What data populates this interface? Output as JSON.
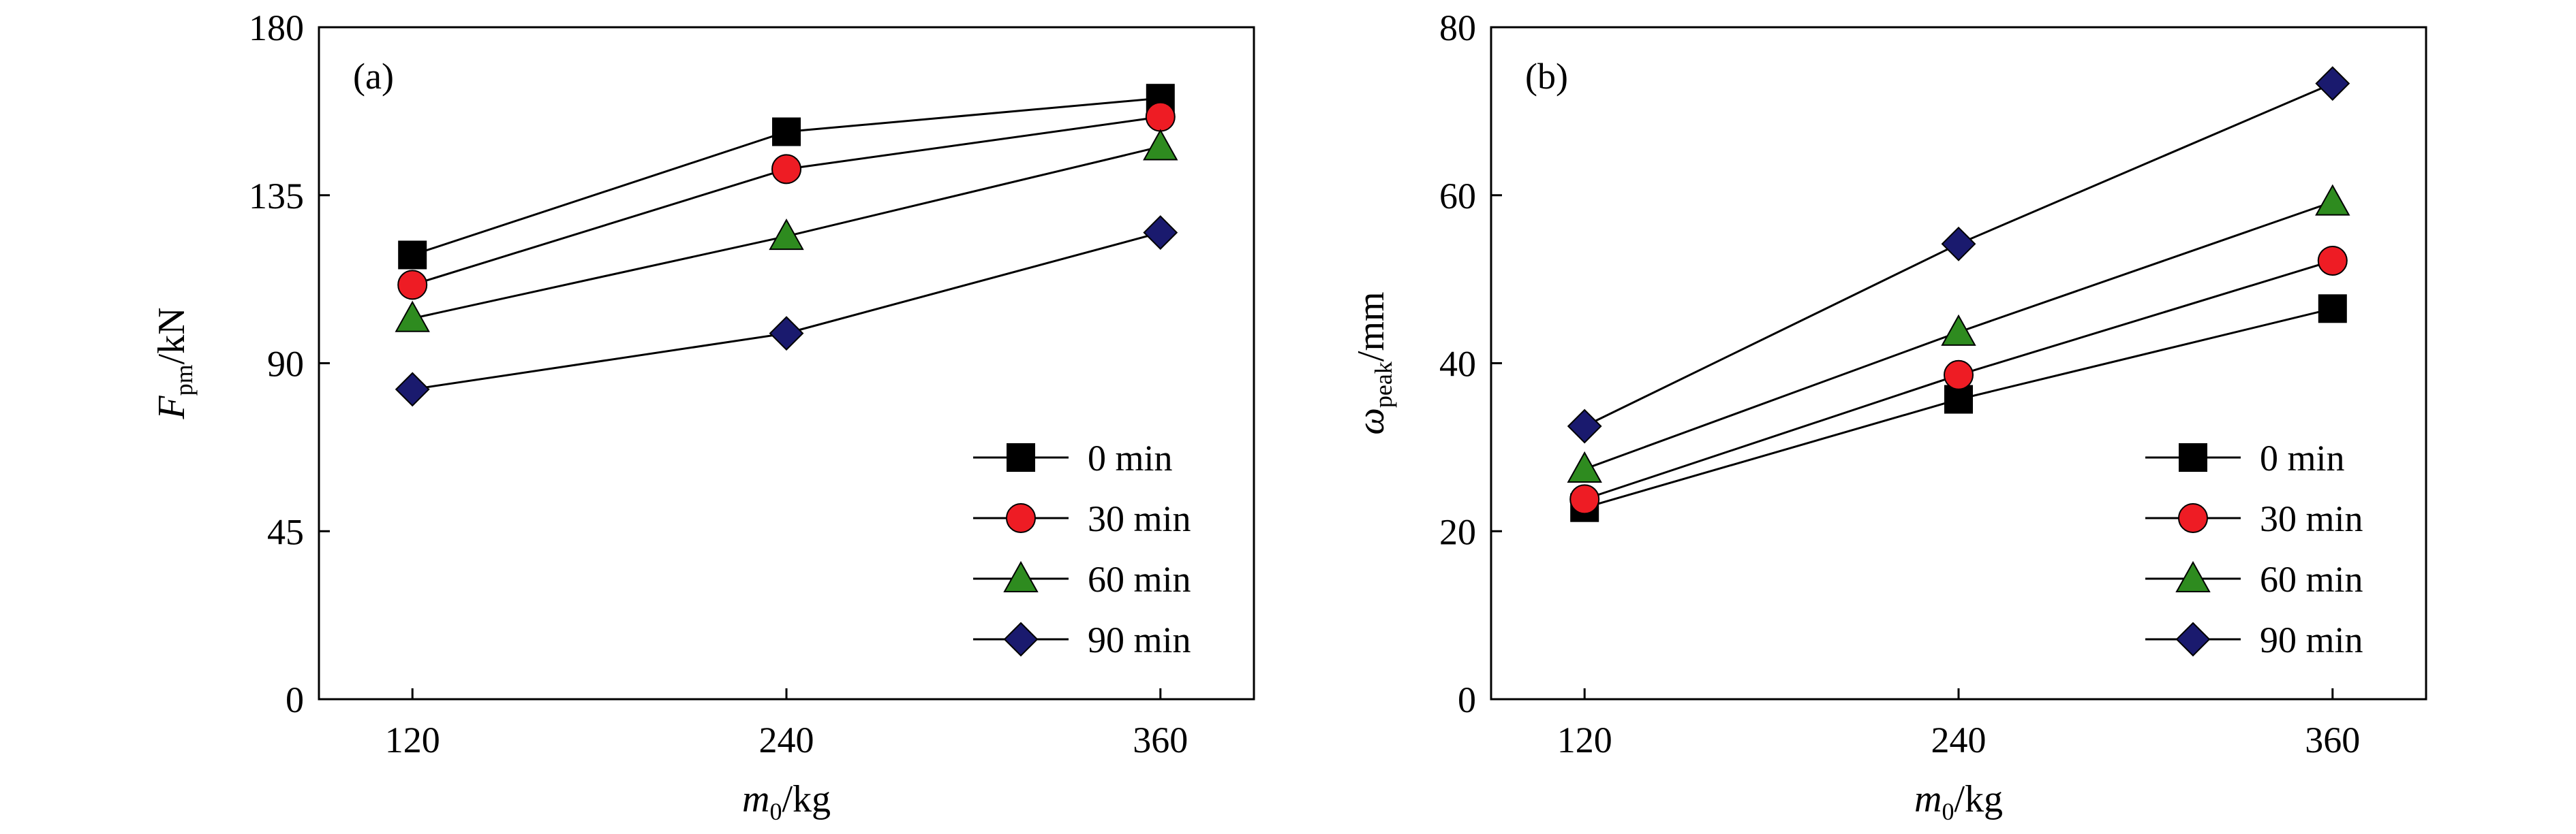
{
  "chart_data": [
    {
      "type": "line",
      "panel_label": "(a)",
      "xlabel": {
        "main": "m",
        "sub": "0",
        "unit": "/kg"
      },
      "ylabel": {
        "main": "F",
        "sub": "pm",
        "unit": "/kN"
      },
      "x": [
        120,
        240,
        360
      ],
      "xticks": [
        "120",
        "240",
        "360"
      ],
      "xlim": [
        90,
        390
      ],
      "ylim": [
        0,
        180
      ],
      "yticks": [
        "0",
        "45",
        "90",
        "135",
        "180"
      ],
      "legend_position": "bottom-right",
      "series": [
        {
          "name": "0 min",
          "marker": "square",
          "color": "#000000",
          "values": [
            119,
            152,
            161
          ]
        },
        {
          "name": "30 min",
          "marker": "circle",
          "color": "#ee1c24",
          "values": [
            111,
            142,
            156
          ]
        },
        {
          "name": "60 min",
          "marker": "triangle",
          "color": "#2e8b1f",
          "values": [
            102,
            124,
            148
          ]
        },
        {
          "name": "90 min",
          "marker": "diamond",
          "color": "#1a1a6e",
          "values": [
            83,
            98,
            125
          ]
        }
      ]
    },
    {
      "type": "line",
      "panel_label": "(b)",
      "xlabel": {
        "main": "m",
        "sub": "0",
        "unit": "/kg"
      },
      "ylabel": {
        "main": "ω",
        "sub": "peak",
        "unit": "/mm"
      },
      "x": [
        120,
        240,
        360
      ],
      "xticks": [
        "120",
        "240",
        "360"
      ],
      "xlim": [
        90,
        390
      ],
      "ylim": [
        0,
        80
      ],
      "yticks": [
        "0",
        "20",
        "40",
        "60",
        "80"
      ],
      "legend_position": "bottom-right",
      "series": [
        {
          "name": "0 min",
          "marker": "square",
          "color": "#000000",
          "values": [
            22.8,
            35.7,
            46.5
          ]
        },
        {
          "name": "30 min",
          "marker": "circle",
          "color": "#ee1c24",
          "values": [
            23.8,
            38.6,
            52.2
          ]
        },
        {
          "name": "60 min",
          "marker": "triangle",
          "color": "#2e8b1f",
          "values": [
            27.4,
            43.7,
            59.2
          ]
        },
        {
          "name": "90 min",
          "marker": "diamond",
          "color": "#1a1a6e",
          "values": [
            32.5,
            54.2,
            73.3
          ]
        }
      ]
    }
  ]
}
